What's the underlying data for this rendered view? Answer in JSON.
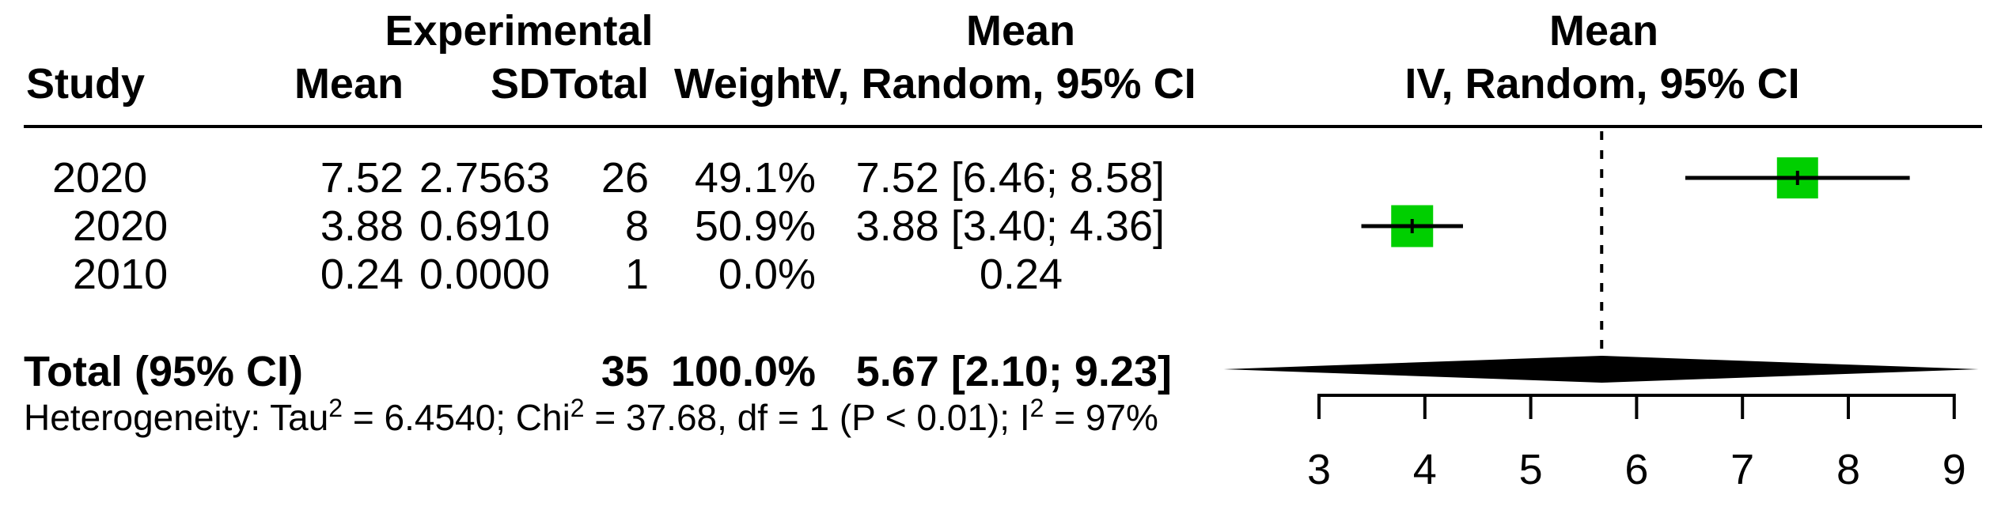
{
  "table": {
    "group_header": "Experimental",
    "columns": {
      "study": "Study",
      "mean": "Mean",
      "sd": "SD",
      "total": "Total",
      "weight": "Weight"
    },
    "effect_header": {
      "line1": "Mean",
      "line2": "IV, Random, 95% CI"
    },
    "plot_header": {
      "line1": "Mean",
      "line2": "IV, Random, 95% CI"
    },
    "rows": [
      {
        "study": "2020",
        "mean": "7.52",
        "sd": "2.7563",
        "total": "26",
        "weight": "49.1%",
        "ci": "7.52 [6.46; 8.58]"
      },
      {
        "study": "2020",
        "mean": "3.88",
        "sd": "0.6910",
        "total": "8",
        "weight": "50.9%",
        "ci": "3.88 [3.40; 4.36]"
      },
      {
        "study": "2010",
        "mean": "0.24",
        "sd": "0.0000",
        "total": "1",
        "weight": "0.0%",
        "ci": "0.24"
      }
    ],
    "total_row": {
      "label": "Total (95% CI)",
      "total": "35",
      "weight": "100.0%",
      "ci": "5.67 [2.10; 9.23]"
    },
    "heterogeneity": {
      "full_text": "Heterogeneity: Tau² = 6.4540; Chi² = 37.68, df = 1 (P < 0.01); I² = 97%",
      "parts": [
        "Heterogeneity: Tau",
        "2",
        " = 6.4540; Chi",
        "2",
        " = 37.68, df = 1 (P < 0.01); I",
        "2",
        " = 97%"
      ]
    }
  },
  "chart_data": {
    "type": "forest",
    "title": "",
    "xlabel": "",
    "axis": {
      "min": 3,
      "max": 9,
      "ticks": [
        3,
        4,
        5,
        6,
        7,
        8,
        9
      ]
    },
    "reference_line": 5.67,
    "marker_color": "#00CF00",
    "line_color": "#000000",
    "studies": [
      {
        "label": "2020",
        "mean": 7.52,
        "ci_low": 6.46,
        "ci_high": 8.58,
        "weight_pct": 49.1
      },
      {
        "label": "2020",
        "mean": 3.88,
        "ci_low": 3.4,
        "ci_high": 4.36,
        "weight_pct": 50.9
      },
      {
        "label": "2010",
        "mean": 0.24,
        "ci_low": null,
        "ci_high": null,
        "weight_pct": 0.0
      }
    ],
    "overall": {
      "label": "Total (95% CI)",
      "mean": 5.67,
      "ci_low": 2.1,
      "ci_high": 9.23
    }
  }
}
